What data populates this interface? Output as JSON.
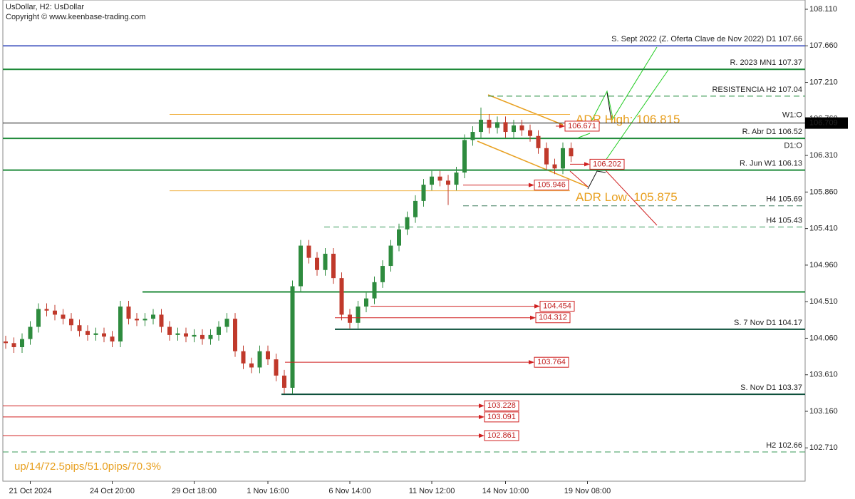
{
  "chart_data": {
    "type": "candlestick",
    "title": "UsDollar, H2:  UsDollar",
    "subtitle": "Copyright © www.keenbase-trading.com",
    "stats": "up/14/72.5pips/51.0pips/70.3%",
    "up_color": "#2e8b3e",
    "down_color": "#c0392b",
    "ylim": [
      102.3,
      108.224
    ],
    "yticks": [
      {
        "value": 108.11,
        "label": "108.110"
      },
      {
        "value": 107.66,
        "label": "107.660"
      },
      {
        "value": 107.21,
        "label": "107.210"
      },
      {
        "value": 106.76,
        "label": "106.760"
      },
      {
        "value": 106.31,
        "label": "106.310"
      },
      {
        "value": 105.86,
        "label": "105.860"
      },
      {
        "value": 105.41,
        "label": "105.410"
      },
      {
        "value": 104.96,
        "label": "104.960"
      },
      {
        "value": 104.51,
        "label": "104.510"
      },
      {
        "value": 104.06,
        "label": "104.060"
      },
      {
        "value": 103.61,
        "label": "103.610"
      },
      {
        "value": 103.16,
        "label": "103.160"
      },
      {
        "value": 102.71,
        "label": "102.710"
      }
    ],
    "categories": [
      null,
      null,
      null,
      "21 Oct 2024",
      null,
      null,
      null,
      null,
      null,
      null,
      null,
      null,
      null,
      "24 Oct 20:00",
      null,
      null,
      null,
      null,
      null,
      null,
      null,
      null,
      null,
      "29 Oct 18:00",
      null,
      null,
      null,
      null,
      null,
      null,
      null,
      null,
      "1 Nov 16:00",
      null,
      null,
      null,
      null,
      null,
      null,
      null,
      null,
      null,
      "6 Nov 14:00",
      null,
      null,
      null,
      null,
      null,
      null,
      null,
      null,
      null,
      "11 Nov 12:00",
      null,
      null,
      null,
      null,
      null,
      null,
      null,
      null,
      "14 Nov 10:00",
      null,
      null,
      null,
      null,
      null,
      null,
      null,
      null,
      null,
      "19 Nov 08:00"
    ],
    "ohlc": [
      [
        104.02,
        104.09,
        103.93,
        104.0
      ],
      [
        104.0,
        104.07,
        103.88,
        103.95
      ],
      [
        103.95,
        104.12,
        103.88,
        104.05
      ],
      [
        104.05,
        104.27,
        103.98,
        104.2
      ],
      [
        104.2,
        104.49,
        104.13,
        104.42
      ],
      [
        104.42,
        104.49,
        104.33,
        104.4
      ],
      [
        104.4,
        104.47,
        104.28,
        104.35
      ],
      [
        104.35,
        104.42,
        104.23,
        104.3
      ],
      [
        104.3,
        104.37,
        104.15,
        104.22
      ],
      [
        104.22,
        104.29,
        104.08,
        104.15
      ],
      [
        104.15,
        104.22,
        104.03,
        104.1
      ],
      [
        104.1,
        104.19,
        104.03,
        104.12
      ],
      [
        104.12,
        104.19,
        104.01,
        104.08
      ],
      [
        104.08,
        104.15,
        103.95,
        104.02
      ],
      [
        104.02,
        104.52,
        103.95,
        104.45
      ],
      [
        104.45,
        104.52,
        104.23,
        104.3
      ],
      [
        104.3,
        104.37,
        104.21,
        104.28
      ],
      [
        104.28,
        104.37,
        104.21,
        104.3
      ],
      [
        104.3,
        104.42,
        104.23,
        104.35
      ],
      [
        104.35,
        104.42,
        104.13,
        104.2
      ],
      [
        104.2,
        104.27,
        104.03,
        104.1
      ],
      [
        104.1,
        104.19,
        104.03,
        104.12
      ],
      [
        104.12,
        104.19,
        104.01,
        104.08
      ],
      [
        104.08,
        104.17,
        104.01,
        104.1
      ],
      [
        104.1,
        104.17,
        103.98,
        104.05
      ],
      [
        104.05,
        104.17,
        103.98,
        104.1
      ],
      [
        104.1,
        104.27,
        104.03,
        104.2
      ],
      [
        104.2,
        104.37,
        104.13,
        104.3
      ],
      [
        104.3,
        104.37,
        103.83,
        103.9
      ],
      [
        103.9,
        103.97,
        103.68,
        103.75
      ],
      [
        103.75,
        103.82,
        103.63,
        103.7
      ],
      [
        103.7,
        103.97,
        103.63,
        103.9
      ],
      [
        103.9,
        103.97,
        103.73,
        103.8
      ],
      [
        103.8,
        103.87,
        103.53,
        103.6
      ],
      [
        103.6,
        103.67,
        103.38,
        103.45
      ],
      [
        103.45,
        104.77,
        103.38,
        104.7
      ],
      [
        104.7,
        105.27,
        104.63,
        105.2
      ],
      [
        105.2,
        105.27,
        104.98,
        105.05
      ],
      [
        105.05,
        105.12,
        104.83,
        104.9
      ],
      [
        104.9,
        105.17,
        104.83,
        105.1
      ],
      [
        105.1,
        105.17,
        104.73,
        104.8
      ],
      [
        104.8,
        104.87,
        104.28,
        104.35
      ],
      [
        104.35,
        104.42,
        104.18,
        104.25
      ],
      [
        104.25,
        104.52,
        104.18,
        104.45
      ],
      [
        104.45,
        104.62,
        104.38,
        104.55
      ],
      [
        104.55,
        104.82,
        104.48,
        104.75
      ],
      [
        104.75,
        105.02,
        104.68,
        104.95
      ],
      [
        104.95,
        105.27,
        104.88,
        105.2
      ],
      [
        105.2,
        105.47,
        105.13,
        105.4
      ],
      [
        105.4,
        105.62,
        105.33,
        105.55
      ],
      [
        105.55,
        105.82,
        105.48,
        105.75
      ],
      [
        105.75,
        106.02,
        105.68,
        105.95
      ],
      [
        105.95,
        106.12,
        105.88,
        106.05
      ],
      [
        106.05,
        106.12,
        105.93,
        106.0
      ],
      [
        106.0,
        106.07,
        105.7,
        105.95
      ],
      [
        105.95,
        106.17,
        105.88,
        106.1
      ],
      [
        106.1,
        106.57,
        106.03,
        106.5
      ],
      [
        106.5,
        106.67,
        106.43,
        106.6
      ],
      [
        106.6,
        106.9,
        106.53,
        106.75
      ],
      [
        106.75,
        106.82,
        106.58,
        106.65
      ],
      [
        106.65,
        106.79,
        106.58,
        106.72
      ],
      [
        106.72,
        106.79,
        106.53,
        106.6
      ],
      [
        106.6,
        106.75,
        106.53,
        106.68
      ],
      [
        106.68,
        106.75,
        106.55,
        106.62
      ],
      [
        106.62,
        106.69,
        106.48,
        106.55
      ],
      [
        106.55,
        106.62,
        106.33,
        106.4
      ],
      [
        106.4,
        106.47,
        106.13,
        106.2
      ],
      [
        106.2,
        106.27,
        106.08,
        106.15
      ],
      [
        106.15,
        106.47,
        106.08,
        106.4
      ],
      [
        106.4,
        106.47,
        106.23,
        106.3
      ],
      null,
      null
    ],
    "levels": [
      {
        "label": "S. Sept 2022 (Z. Oferta Clave de Nov 2022) D1 107.66",
        "value": 107.66,
        "color": "#5a6cc8"
      },
      {
        "label": "R. 2023 MN1 107.37",
        "value": 107.37,
        "color": "#1f8a3a"
      },
      {
        "label": "RESISTENCIA H2 107.04",
        "value": 107.04,
        "color": "#1f8a3a",
        "dash": true
      },
      {
        "label": "R. Abr D1 106.52",
        "value": 106.52,
        "color": "#1f8a3a"
      },
      {
        "label": "R. Jun W1 106.13",
        "value": 106.13,
        "color": "#1f8a3a"
      },
      {
        "label": "H4 105.69",
        "value": 105.69,
        "color": "#3a7a5a",
        "dash": true
      },
      {
        "label": "H4 105.43",
        "value": 105.43,
        "color": "#3a9a5a",
        "dash": true
      },
      {
        "value": 104.63,
        "color": "#1f8a3a"
      },
      {
        "label": "S. 7 Nov D1 104.17",
        "value": 104.17,
        "color": "#0b4f3a"
      },
      {
        "label": "S. Nov D1 103.37",
        "value": 103.37,
        "color": "#0b4f3a"
      },
      {
        "label": "H2 102.66",
        "value": 102.66,
        "color": "#3a9a5a",
        "dash": true
      }
    ],
    "open_levels": [
      {
        "label": "W1:O",
        "value": 106.709
      },
      {
        "label": "D1:O",
        "value": 106.33
      }
    ],
    "current_price": {
      "value": 106.709,
      "label": "106.709"
    },
    "adr": [
      {
        "label": "ADR High: 106.815",
        "value": 106.815
      },
      {
        "label": "ADR Low: 105.875",
        "value": 105.875
      }
    ],
    "price_marks": [
      106.671,
      106.202,
      105.946,
      104.454,
      104.312,
      103.764,
      103.228,
      103.091,
      102.861
    ]
  }
}
